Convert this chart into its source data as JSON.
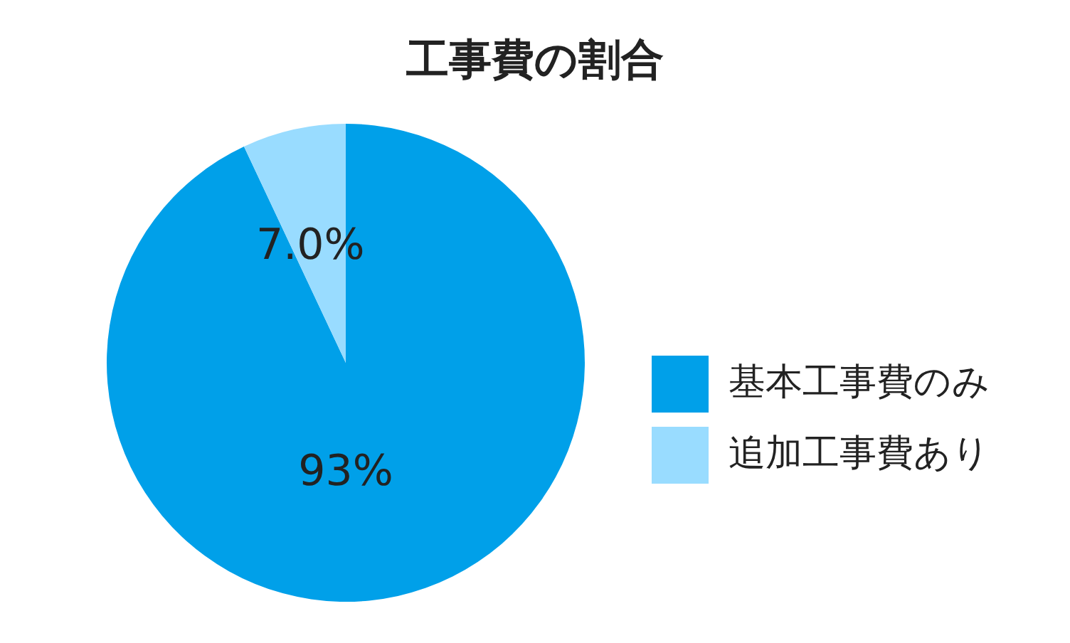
{
  "chart_data": {
    "type": "pie",
    "title": "工事費の割合",
    "categories": [
      "基本工事費のみ",
      "追加工事費あり"
    ],
    "values": [
      93,
      7.0
    ],
    "colors": [
      "#00a0e9",
      "#99dcff"
    ],
    "value_labels": [
      "93%",
      "7.0%"
    ],
    "legend": "right"
  }
}
